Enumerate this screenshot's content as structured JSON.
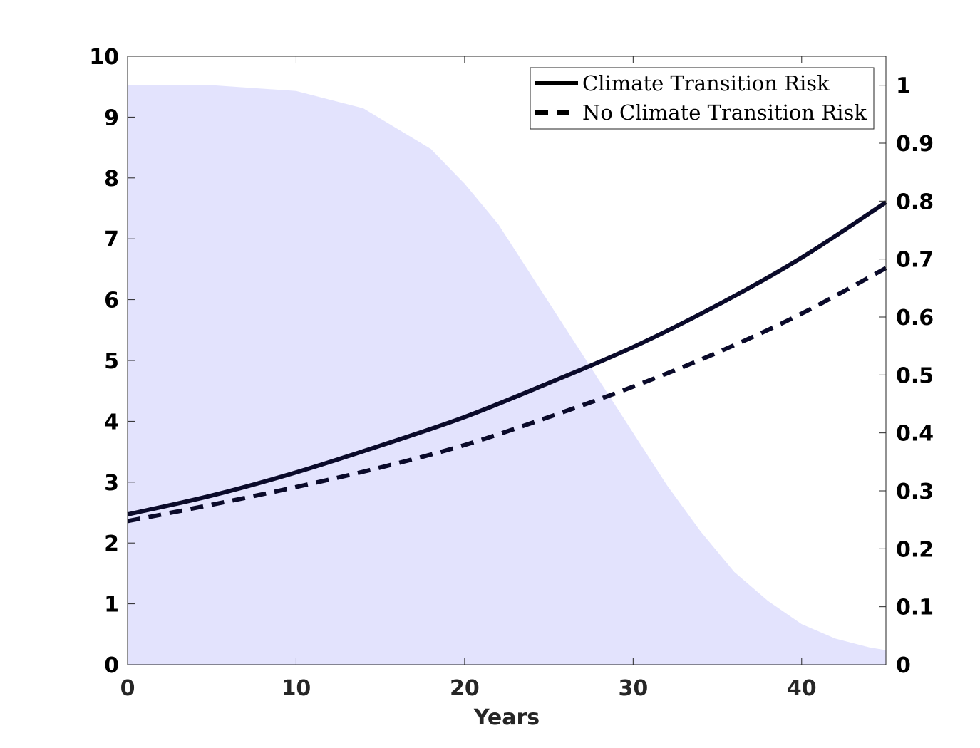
{
  "chart_data": {
    "type": "line",
    "xlabel": "Years",
    "ylabel_left": "",
    "ylabel_right": "",
    "xlim": [
      0,
      45
    ],
    "ylim_left": [
      0,
      10
    ],
    "ylim_right": [
      0,
      1.05
    ],
    "x_ticks": [
      "0",
      "10",
      "20",
      "30",
      "40"
    ],
    "y_left_ticks": [
      "0",
      "1",
      "2",
      "3",
      "4",
      "5",
      "6",
      "7",
      "8",
      "9",
      "10"
    ],
    "y_right_ticks": [
      "0",
      "0.1",
      "0.2",
      "0.3",
      "0.4",
      "0.5",
      "0.6",
      "0.7",
      "0.8",
      "0.9",
      "1"
    ],
    "grid": false,
    "legend_position": "top-right",
    "series": [
      {
        "name": "Climate Transition Risk",
        "axis": "left",
        "style": "solid",
        "color": "#0a0a2a",
        "x": [
          0,
          5,
          10,
          15,
          20,
          25,
          30,
          35,
          40,
          45
        ],
        "values": [
          2.47,
          2.78,
          3.16,
          3.6,
          4.07,
          4.63,
          5.22,
          5.91,
          6.69,
          7.6
        ]
      },
      {
        "name": "No Climate Transition Risk",
        "axis": "left",
        "style": "dashed",
        "color": "#0a0a2a",
        "x": [
          0,
          5,
          10,
          15,
          20,
          25,
          30,
          35,
          40,
          45
        ],
        "values": [
          2.36,
          2.63,
          2.92,
          3.24,
          3.61,
          4.07,
          4.57,
          5.13,
          5.77,
          6.52
        ]
      },
      {
        "name": "",
        "axis": "right",
        "type": "area",
        "color": "#e3e3fd",
        "x": [
          0,
          5,
          10,
          14,
          18,
          20,
          22,
          24,
          26,
          28,
          30,
          32,
          34,
          36,
          38,
          40,
          42,
          44,
          45
        ],
        "values": [
          1.0,
          1.0,
          0.99,
          0.96,
          0.89,
          0.83,
          0.76,
          0.67,
          0.58,
          0.49,
          0.4,
          0.31,
          0.23,
          0.16,
          0.11,
          0.07,
          0.045,
          0.03,
          0.025
        ]
      }
    ]
  }
}
